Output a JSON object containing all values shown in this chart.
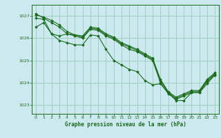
{
  "title": "Graphe pression niveau de la mer (hPa)",
  "bg_color": "#cce9f0",
  "grid_color": "#99ccbb",
  "line_color": "#1a6b1a",
  "marker_color": "#1a6b1a",
  "xlim": [
    -0.5,
    23.5
  ],
  "ylim": [
    1022.6,
    1027.5
  ],
  "yticks": [
    1023,
    1024,
    1025,
    1026,
    1027
  ],
  "xticks": [
    0,
    1,
    2,
    3,
    4,
    5,
    6,
    7,
    8,
    9,
    10,
    11,
    12,
    13,
    14,
    15,
    16,
    17,
    18,
    19,
    20,
    21,
    22,
    23
  ],
  "series": [
    [
      1027.1,
      1026.9,
      1026.7,
      1026.5,
      1026.2,
      1026.1,
      1026.0,
      1026.4,
      1026.35,
      1026.1,
      1025.95,
      1025.7,
      1025.5,
      1025.4,
      1025.2,
      1025.0,
      1024.0,
      1023.5,
      1023.25,
      1023.4,
      1023.55,
      1023.55,
      1024.05,
      1024.35
    ],
    [
      1027.05,
      1026.95,
      1026.8,
      1026.6,
      1026.3,
      1026.15,
      1026.05,
      1026.45,
      1026.4,
      1026.15,
      1026.0,
      1025.75,
      1025.6,
      1025.45,
      1025.25,
      1025.05,
      1024.1,
      1023.55,
      1023.3,
      1023.45,
      1023.6,
      1023.6,
      1024.1,
      1024.4
    ],
    [
      1026.9,
      1026.85,
      1026.2,
      1026.1,
      1026.2,
      1026.15,
      1026.1,
      1026.5,
      1026.45,
      1026.2,
      1026.05,
      1025.8,
      1025.65,
      1025.5,
      1025.3,
      1025.1,
      1024.15,
      1023.6,
      1023.35,
      1023.5,
      1023.65,
      1023.65,
      1024.15,
      1024.45
    ],
    [
      1026.5,
      1026.7,
      1026.2,
      1025.9,
      1025.8,
      1025.7,
      1025.7,
      1026.15,
      1026.1,
      1025.5,
      1025.0,
      1024.8,
      1024.6,
      1024.5,
      1024.1,
      1023.9,
      1023.95,
      1023.55,
      1023.2,
      1023.2,
      1023.55,
      1023.55,
      1023.95,
      1024.35
    ]
  ]
}
